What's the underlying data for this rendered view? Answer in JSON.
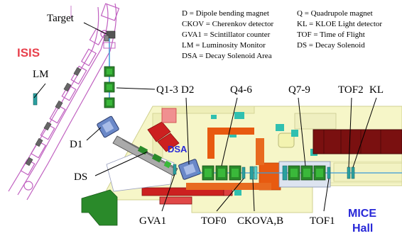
{
  "legend": {
    "left": [
      "D = Dipole bending magnet",
      "CKOV = Cherenkov detector",
      "GVA1 = Scintillator counter",
      "LM = Luminosity Monitor",
      "DSA = Decay Solenoid Area"
    ],
    "right": [
      "Q = Quadrupole magnet",
      "KL = KLOE Light detector",
      "TOF = Time of Flight",
      "DS = Decay Solenoid"
    ]
  },
  "areas": {
    "isis": "ISIS",
    "dsa": "DSA",
    "mice_line1": "MICE",
    "mice_line2": "Hall"
  },
  "labels": {
    "target": "Target",
    "lm": "LM",
    "q1_3": "Q1-3",
    "d2": "D2",
    "q4_6": "Q4-6",
    "q7_9": "Q7-9",
    "tof2": "TOF2",
    "kl": "KL",
    "d1": "D1",
    "ds": "DS",
    "gva1": "GVA1",
    "tof0": "TOF0",
    "ckova_b": "CKOVA,B",
    "tof1": "TOF1"
  },
  "colors": {
    "isis_outline": "#c060c0",
    "hall_fill": "#f6f6c8",
    "hall_outline": "#d0d090",
    "magnet_green": "#2a8a2a",
    "beamline_orange": "#e85a10",
    "red_block": "#cc2020",
    "dark_red": "#7a1010",
    "dipole_blue": "#6a88c8",
    "detector_teal": "#2aa0a0",
    "teal_block": "#30c0b0"
  }
}
